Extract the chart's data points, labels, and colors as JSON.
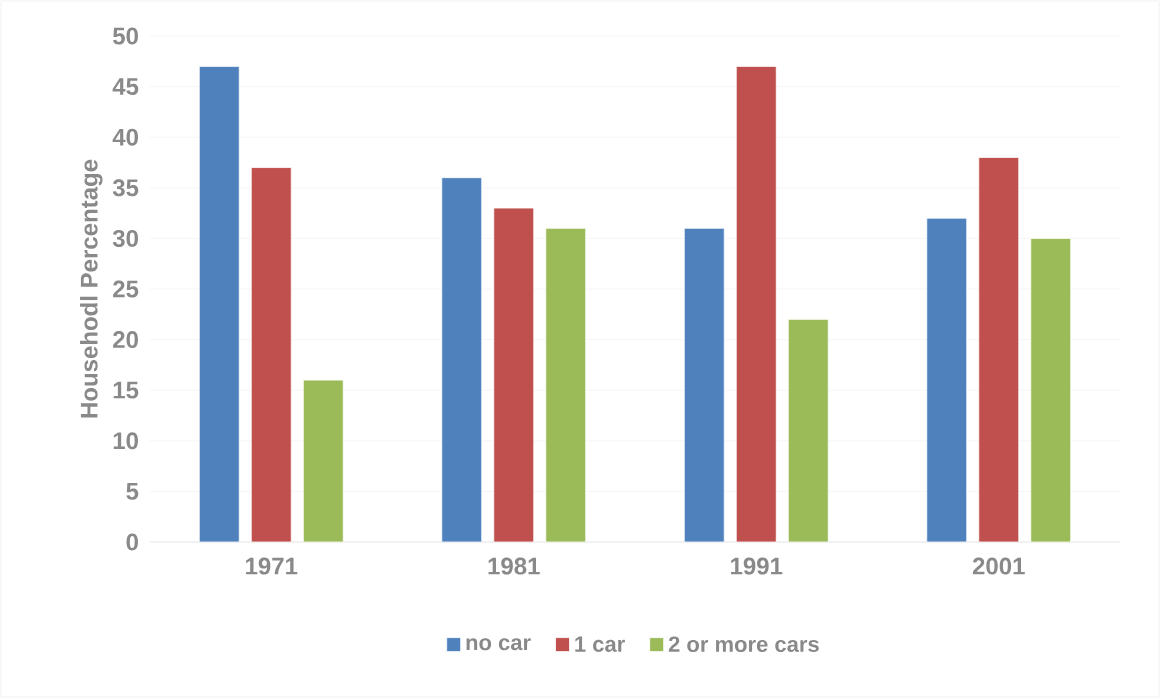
{
  "chart_data": {
    "type": "bar",
    "ylabel": "Househodl Percentage",
    "categories": [
      "1971",
      "1981",
      "1991",
      "2001"
    ],
    "series": [
      {
        "name": "no car",
        "color": "#4f81bd",
        "values": [
          47,
          36,
          31,
          32
        ]
      },
      {
        "name": "1 car",
        "color": "#c0504d",
        "values": [
          37,
          33,
          47,
          38
        ]
      },
      {
        "name": "2 or more cars",
        "color": "#9bbb59",
        "values": [
          16,
          31,
          22,
          30
        ]
      }
    ],
    "ylim": [
      0,
      50
    ],
    "yticks": [
      0,
      5,
      10,
      15,
      20,
      25,
      30,
      35,
      40,
      45,
      50
    ],
    "grid": "y",
    "legend": "bottom"
  }
}
